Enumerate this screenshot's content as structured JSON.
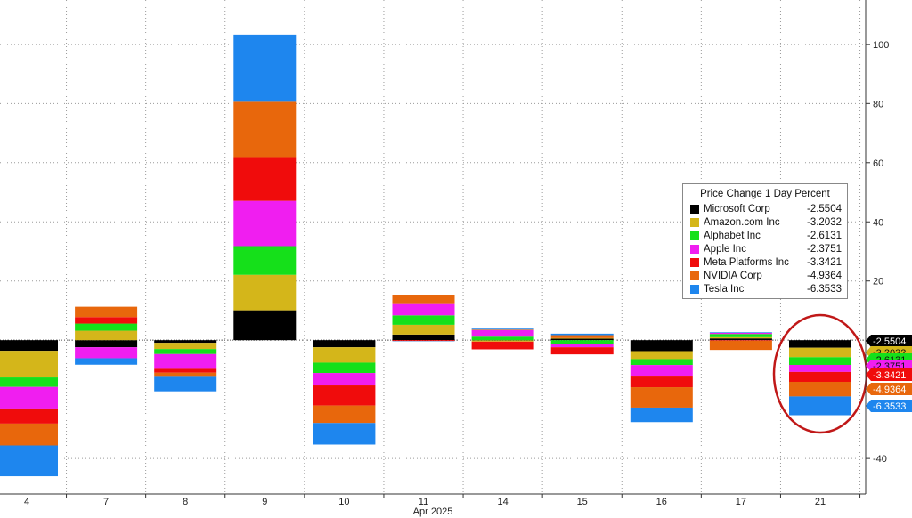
{
  "chart_data": {
    "type": "bar",
    "stacked": true,
    "legend_title": "Price Change 1 Day Percent",
    "date_label": "Apr 2025",
    "categories": [
      "4",
      "7",
      "8",
      "9",
      "10",
      "11",
      "14",
      "15",
      "16",
      "17",
      "21"
    ],
    "ylim": [
      -52,
      115
    ],
    "yticks": [
      -40,
      0,
      20,
      40,
      60,
      80,
      100
    ],
    "ytick_labels": [
      "-40",
      "0",
      "20",
      "40",
      "60",
      "80",
      "100"
    ],
    "grid": true,
    "legend_position": "right",
    "series": [
      {
        "name": "Microsoft Corp",
        "color": "#000000",
        "latest": "-2.5504",
        "values": [
          -3.6,
          -2.4,
          -0.9,
          10.1,
          -2.4,
          1.9,
          -0.1,
          0.5,
          -3.7,
          0.6,
          -2.5504
        ]
      },
      {
        "name": "Amazon.com Inc",
        "color": "#d4b61a",
        "latest": "-3.2032",
        "values": [
          -9.0,
          3.2,
          -2.1,
          12.0,
          -5.2,
          3.3,
          -0.4,
          0.2,
          -2.7,
          0.4,
          -3.2032
        ]
      },
      {
        "name": "Alphabet Inc",
        "color": "#15e01a",
        "latest": "-2.6131",
        "values": [
          -3.2,
          2.4,
          -1.7,
          9.7,
          -3.5,
          3.2,
          1.2,
          -1.4,
          -2.0,
          1.1,
          -2.6131
        ]
      },
      {
        "name": "Apple Inc",
        "color": "#f01ef0",
        "latest": "-2.3751",
        "values": [
          -7.3,
          -3.7,
          -5.0,
          15.3,
          -4.2,
          4.1,
          2.2,
          -1.0,
          -3.9,
          0.4,
          -2.3751
        ]
      },
      {
        "name": "Meta Platforms Inc",
        "color": "#f00c0c",
        "latest": "-3.3421",
        "values": [
          -5.1,
          2.2,
          -1.3,
          14.8,
          -6.8,
          -0.3,
          -2.6,
          -2.4,
          -3.6,
          -0.2,
          -3.3421
        ]
      },
      {
        "name": "NVIDIA Corp",
        "color": "#e8670c",
        "latest": "-4.9364",
        "values": [
          -7.4,
          3.5,
          -1.4,
          18.7,
          -5.9,
          2.9,
          0.2,
          1.0,
          -6.9,
          -3.1,
          -4.9364
        ]
      },
      {
        "name": "Tesla Inc",
        "color": "#1e86ee",
        "latest": "-6.3533",
        "values": [
          -10.4,
          -2.2,
          -4.9,
          22.7,
          -7.3,
          -0.1,
          0.3,
          0.5,
          -4.9,
          0.2,
          -6.3533
        ]
      }
    ]
  }
}
